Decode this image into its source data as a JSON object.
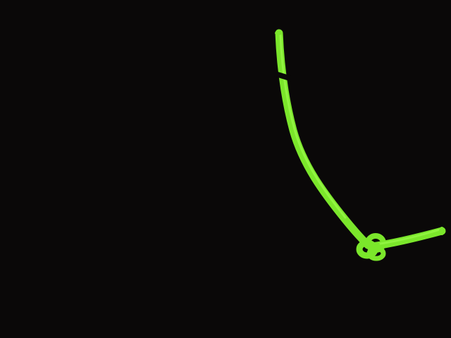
{
  "scene": {
    "subject": "rope-with-knot",
    "colors": {
      "background": "#0a0808",
      "rope": "#7be62b",
      "rope_highlight": "#a6ff55",
      "rope_shadow": "#3f8a10",
      "band": "#0a0808"
    }
  }
}
